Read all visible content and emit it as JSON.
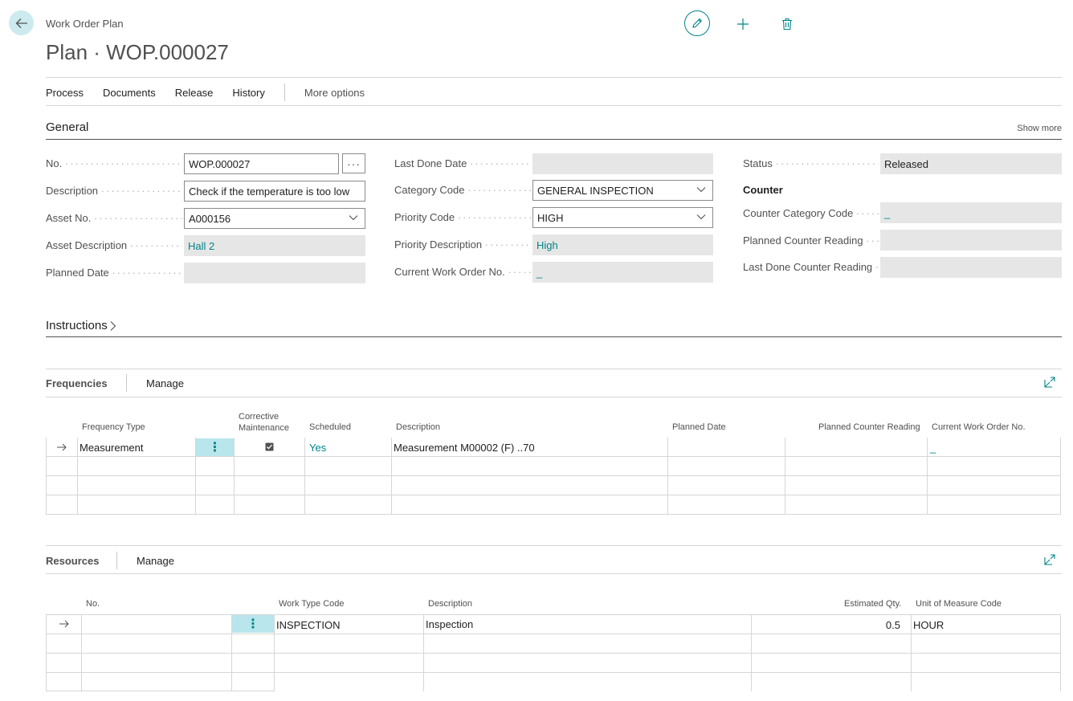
{
  "header": {
    "caption": "Work Order Plan",
    "title": "Plan · WOP.000027"
  },
  "actions": {
    "process": "Process",
    "documents": "Documents",
    "release": "Release",
    "history": "History",
    "more": "More options"
  },
  "general": {
    "title": "General",
    "show_more": "Show more",
    "no_label": "No.",
    "no_value": "WOP.000027",
    "assist": "···",
    "description_label": "Description",
    "description_value": "Check if the temperature is too low",
    "asset_no_label": "Asset No.",
    "asset_no_value": "A000156",
    "asset_desc_label": "Asset Description",
    "asset_desc_value": "Hall 2",
    "planned_date_label": "Planned Date",
    "planned_date_value": "",
    "last_done_label": "Last Done Date",
    "last_done_value": "",
    "category_label": "Category Code",
    "category_value": "GENERAL INSPECTION",
    "priority_label": "Priority Code",
    "priority_value": "HIGH",
    "priority_desc_label": "Priority Description",
    "priority_desc_value": "High",
    "current_wo_label": "Current Work Order No.",
    "current_wo_value": "_",
    "status_label": "Status",
    "status_value": "Released",
    "counter_header": "Counter",
    "counter_cat_label": "Counter Category Code",
    "counter_cat_value": "_",
    "planned_counter_label": "Planned Counter Reading",
    "planned_counter_value": "",
    "last_counter_label": "Last Done Counter Reading",
    "last_counter_value": ""
  },
  "instructions": {
    "title": "Instructions"
  },
  "frequencies": {
    "title": "Frequencies",
    "manage": "Manage",
    "columns": {
      "frequency_type": "Frequency Type",
      "corrective_1": "Corrective",
      "corrective_2": "Maintenance",
      "scheduled": "Scheduled",
      "description": "Description",
      "planned_date": "Planned Date",
      "planned_counter": "Planned Counter Reading",
      "current_wo": "Current Work Order No."
    },
    "row": {
      "frequency_type": "Measurement",
      "corrective_checked": true,
      "scheduled": "Yes",
      "description": "Measurement M00002 (F) ..70",
      "planned_date": "",
      "planned_counter": "",
      "current_wo": "_"
    }
  },
  "resources": {
    "title": "Resources",
    "manage": "Manage",
    "columns": {
      "no": "No.",
      "work_type": "Work Type Code",
      "description": "Description",
      "est_qty": "Estimated Qty.",
      "uom": "Unit of Measure Code"
    },
    "row": {
      "no": "",
      "work_type": "INSPECTION",
      "description": "Inspection",
      "est_qty": "0.5",
      "uom": "HOUR"
    }
  },
  "colors": {
    "accent": "#008489",
    "readonly_bg": "#e6e6e6",
    "selected_cell": "#b8e6ec"
  }
}
